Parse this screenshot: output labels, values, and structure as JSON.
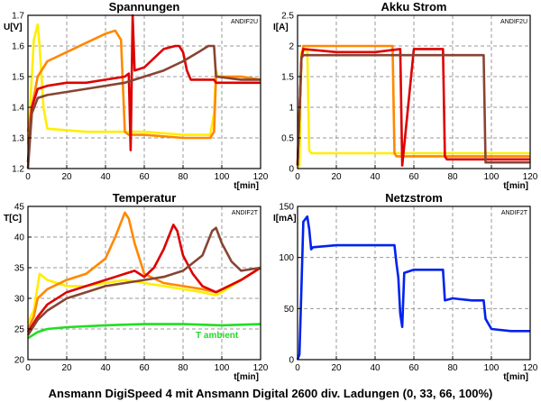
{
  "caption": "Ansmann DigiSpeed 4 mit Ansmann Digital 2600 div. Ladungen (0, 33, 66, 100%)",
  "chart_data": [
    {
      "id": "spannungen",
      "type": "line",
      "title": "Spannungen",
      "ylabel": "U[V]",
      "xlabel": "t[min]",
      "corner_tag": "ANDIF2U",
      "xlim": [
        0,
        120
      ],
      "ylim": [
        1.2,
        1.7
      ],
      "xticks": [
        "0",
        "20",
        "40",
        "60",
        "80",
        "100",
        "120"
      ],
      "yticks": [
        "1.2",
        "1.3",
        "1.4",
        "1.5",
        "1.6",
        "1.7"
      ],
      "grid": true,
      "series": [
        {
          "color": "#ffee00",
          "x": [
            0,
            2,
            3,
            5,
            6,
            8,
            10,
            30,
            60,
            80,
            94,
            96,
            97,
            98,
            110,
            120
          ],
          "y": [
            1.28,
            1.5,
            1.62,
            1.67,
            1.6,
            1.4,
            1.33,
            1.32,
            1.32,
            1.31,
            1.31,
            1.38,
            1.52,
            1.5,
            1.5,
            1.49
          ]
        },
        {
          "color": "#ff8800",
          "x": [
            0,
            2,
            5,
            10,
            20,
            30,
            40,
            45,
            48,
            50,
            52,
            60,
            80,
            94,
            96,
            97,
            110,
            120
          ],
          "y": [
            1.32,
            1.4,
            1.5,
            1.55,
            1.58,
            1.61,
            1.64,
            1.65,
            1.62,
            1.32,
            1.31,
            1.31,
            1.3,
            1.3,
            1.32,
            1.5,
            1.5,
            1.49
          ]
        },
        {
          "color": "#dd0000",
          "x": [
            0,
            2,
            5,
            10,
            20,
            30,
            40,
            50,
            52,
            53,
            54,
            55,
            60,
            65,
            70,
            76,
            78,
            80,
            82,
            84,
            90,
            96,
            97,
            110,
            120
          ],
          "y": [
            1.22,
            1.4,
            1.46,
            1.47,
            1.48,
            1.48,
            1.49,
            1.5,
            1.51,
            1.26,
            1.7,
            1.52,
            1.53,
            1.56,
            1.59,
            1.6,
            1.6,
            1.58,
            1.52,
            1.49,
            1.49,
            1.49,
            1.48,
            1.48,
            1.48
          ]
        },
        {
          "color": "#884433",
          "x": [
            0,
            2,
            5,
            10,
            20,
            30,
            40,
            50,
            60,
            70,
            80,
            88,
            93,
            96,
            97,
            110,
            120
          ],
          "y": [
            1.2,
            1.38,
            1.43,
            1.44,
            1.45,
            1.46,
            1.47,
            1.48,
            1.5,
            1.52,
            1.55,
            1.58,
            1.6,
            1.6,
            1.5,
            1.49,
            1.49
          ]
        }
      ]
    },
    {
      "id": "akku-strom",
      "type": "line",
      "title": "Akku Strom",
      "ylabel": "I[A]",
      "xlabel": "t[min]",
      "corner_tag": "ANDIF2U",
      "xlim": [
        0,
        120
      ],
      "ylim": [
        0,
        2.5
      ],
      "xticks": [
        "0",
        "20",
        "40",
        "60",
        "80",
        "100",
        "120"
      ],
      "yticks": [
        "0",
        "0.5",
        "1",
        "1.5",
        "2",
        "2.5"
      ],
      "grid": true,
      "series": [
        {
          "color": "#ffee00",
          "x": [
            0,
            1,
            2,
            5,
            6,
            7,
            20,
            60,
            100,
            120
          ],
          "y": [
            0,
            0.05,
            1.9,
            1.95,
            0.3,
            0.25,
            0.25,
            0.25,
            0.25,
            0.25
          ]
        },
        {
          "color": "#ff8800",
          "x": [
            0,
            2,
            3,
            20,
            40,
            49,
            50,
            51,
            60,
            120
          ],
          "y": [
            0.05,
            1.8,
            2.0,
            2.0,
            2.0,
            2.0,
            0.25,
            0.2,
            0.2,
            0.2
          ]
        },
        {
          "color": "#dd0000",
          "x": [
            0,
            2,
            3,
            20,
            40,
            53,
            54,
            60,
            75,
            76,
            77,
            120
          ],
          "y": [
            0.05,
            1.8,
            1.95,
            1.9,
            1.9,
            1.95,
            0.05,
            1.95,
            1.95,
            0.2,
            0.15,
            0.15
          ]
        },
        {
          "color": "#884433",
          "x": [
            0,
            2,
            3,
            20,
            40,
            60,
            80,
            96,
            97,
            98,
            120
          ],
          "y": [
            0.05,
            1.8,
            1.85,
            1.85,
            1.85,
            1.85,
            1.85,
            1.85,
            0.1,
            0.1,
            0.1
          ]
        }
      ]
    },
    {
      "id": "temperatur",
      "type": "line",
      "title": "Temperatur",
      "ylabel": "T[C]",
      "xlabel": "t[min]",
      "corner_tag": "ANDIF2T",
      "annotation": "T ambient",
      "xlim": [
        0,
        120
      ],
      "ylim": [
        20,
        45
      ],
      "xticks": [
        "0",
        "20",
        "40",
        "60",
        "80",
        "100",
        "120"
      ],
      "yticks": [
        "20",
        "25",
        "30",
        "35",
        "40",
        "45"
      ],
      "grid": true,
      "series": [
        {
          "color": "#22dd22",
          "x": [
            0,
            5,
            10,
            20,
            40,
            60,
            80,
            100,
            120
          ],
          "y": [
            23.5,
            24.5,
            25,
            25.3,
            25.6,
            25.8,
            25.8,
            25.6,
            25.8
          ]
        },
        {
          "color": "#ffee00",
          "x": [
            0,
            3,
            6,
            10,
            20,
            30,
            40,
            50,
            60,
            70,
            80,
            90,
            97,
            100,
            110,
            120
          ],
          "y": [
            26,
            28,
            34,
            33,
            32,
            32,
            32.5,
            33,
            32.5,
            32,
            31.5,
            31,
            30.5,
            31,
            33,
            35
          ]
        },
        {
          "color": "#ff8800",
          "x": [
            0,
            3,
            5,
            10,
            20,
            30,
            40,
            45,
            50,
            52,
            55,
            60,
            70,
            80,
            90,
            97,
            110,
            120
          ],
          "y": [
            25,
            27,
            30,
            31.5,
            33,
            34,
            36.5,
            40,
            44,
            43,
            39,
            34,
            32.5,
            32,
            31.5,
            31,
            33,
            35
          ]
        },
        {
          "color": "#dd0000",
          "x": [
            0,
            5,
            10,
            20,
            30,
            40,
            50,
            55,
            60,
            65,
            70,
            75,
            77,
            80,
            85,
            90,
            97,
            110,
            120
          ],
          "y": [
            24.5,
            27,
            29,
            31,
            32,
            33,
            34,
            34.5,
            33.5,
            35,
            38,
            42,
            41,
            37,
            34,
            32,
            31,
            33,
            35
          ]
        },
        {
          "color": "#884433",
          "x": [
            0,
            5,
            10,
            20,
            30,
            40,
            50,
            60,
            70,
            80,
            90,
            95,
            97,
            100,
            105,
            110,
            120
          ],
          "y": [
            24,
            26.5,
            28,
            30,
            31,
            32,
            32.5,
            33,
            33.5,
            34.5,
            37,
            41,
            41.5,
            39,
            36,
            34.5,
            35
          ]
        }
      ]
    },
    {
      "id": "netzstrom",
      "type": "line",
      "title": "Netzstrom",
      "ylabel": "I[mA]",
      "xlabel": "t[min]",
      "corner_tag": "ANDIF2T",
      "xlim": [
        0,
        120
      ],
      "ylim": [
        0,
        150
      ],
      "xticks": [
        "0",
        "20",
        "40",
        "60",
        "80",
        "100",
        "120"
      ],
      "yticks": [
        "0",
        "50",
        "100",
        "150"
      ],
      "grid": true,
      "series": [
        {
          "color": "#0022ee",
          "x": [
            0,
            1,
            2,
            3,
            5,
            6,
            7,
            8,
            20,
            40,
            50,
            51,
            52,
            53,
            54,
            55,
            60,
            70,
            75,
            76,
            80,
            90,
            96,
            97,
            100,
            110,
            120
          ],
          "y": [
            0,
            5,
            70,
            135,
            140,
            128,
            108,
            110,
            112,
            112,
            112,
            95,
            80,
            45,
            32,
            85,
            88,
            88,
            88,
            58,
            60,
            58,
            58,
            40,
            30,
            28,
            28
          ]
        }
      ]
    }
  ]
}
